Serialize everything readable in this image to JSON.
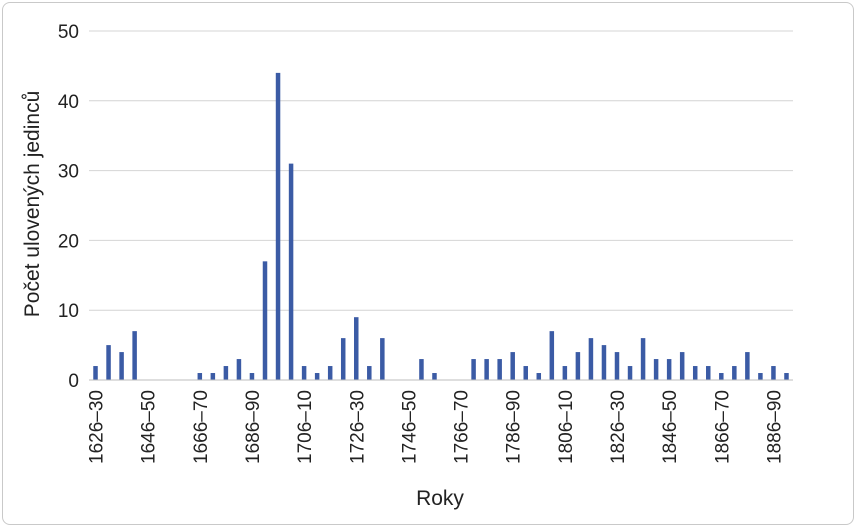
{
  "chart_data": {
    "type": "bar",
    "xlabel": "Roky",
    "ylabel": "Počet ulovených jedinců",
    "ylim": [
      0,
      50
    ],
    "yticks": [
      0,
      10,
      20,
      30,
      40,
      50
    ],
    "grid": "horizontal",
    "color": "#3b5ba5",
    "categories": [
      "1626–30",
      "1631–35",
      "1636–40",
      "1641–45",
      "1646–50",
      "1651–55",
      "1656–60",
      "1661–65",
      "1666–70",
      "1671–75",
      "1676–80",
      "1681–85",
      "1686–90",
      "1691–95",
      "1696–1700",
      "1701–05",
      "1706–10",
      "1711–15",
      "1716–20",
      "1721–25",
      "1726–30",
      "1731–35",
      "1736–40",
      "1741–45",
      "1746–50",
      "1751–55",
      "1756–60",
      "1761–65",
      "1766–70",
      "1771–75",
      "1776–80",
      "1781–85",
      "1786–90",
      "1791–95",
      "1796–1800",
      "1801–05",
      "1806–10",
      "1811–15",
      "1816–20",
      "1821–25",
      "1826–30",
      "1831–35",
      "1836–40",
      "1841–45",
      "1846–50",
      "1851–55",
      "1856–60",
      "1861–65",
      "1866–70",
      "1871–75",
      "1876–80",
      "1881–85",
      "1886–90",
      "1891–95"
    ],
    "values": [
      2,
      5,
      4,
      7,
      0,
      0,
      0,
      0,
      1,
      1,
      2,
      3,
      1,
      17,
      44,
      31,
      2,
      1,
      2,
      6,
      9,
      2,
      6,
      0,
      0,
      3,
      1,
      0,
      0,
      3,
      3,
      3,
      4,
      2,
      1,
      7,
      2,
      4,
      6,
      5,
      4,
      2,
      6,
      3,
      3,
      4,
      2,
      2,
      1,
      2,
      4,
      1,
      2,
      1
    ],
    "xtick_labels": [
      "1626–30",
      "1646–50",
      "1666–70",
      "1686–90",
      "1706–10",
      "1726–30",
      "1746–50",
      "1766–70",
      "1786–90",
      "1806–10",
      "1826–30",
      "1846–50",
      "1866–70",
      "1886–90"
    ]
  }
}
